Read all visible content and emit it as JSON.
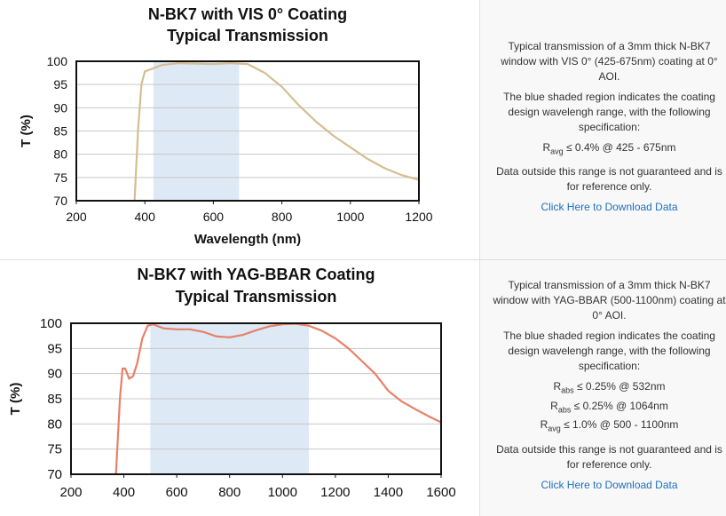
{
  "chart_data": [
    {
      "type": "line",
      "title": "N-BK7 with VIS 0° Coating",
      "subtitle": "Typical Transmission",
      "x_label": "Wavelength (nm)",
      "y_label": "T (%)",
      "x": [
        370,
        380,
        390,
        400,
        425,
        450,
        500,
        550,
        600,
        650,
        700,
        750,
        800,
        850,
        900,
        950,
        1000,
        1050,
        1100,
        1150,
        1200
      ],
      "values": [
        70,
        85,
        95,
        97.8,
        98.5,
        99.2,
        99.6,
        99.5,
        99.4,
        99.6,
        99.4,
        97.5,
        94.5,
        90.5,
        87,
        84,
        81.5,
        79,
        77,
        75.5,
        74.5
      ],
      "color": "#d6bd92",
      "shaded_range": [
        425,
        675
      ],
      "shade_color": "#dde9f5",
      "xlim": [
        200,
        1200
      ],
      "xticks": [
        200,
        400,
        600,
        800,
        1000,
        1200
      ],
      "ylim": [
        70,
        100
      ],
      "yticks": [
        70,
        75,
        80,
        85,
        90,
        95,
        100
      ],
      "grid": true
    },
    {
      "type": "line",
      "title": "N-BK7 with YAG-BBAR Coating",
      "subtitle": "Typical Transmission",
      "y_label": "T (%)",
      "x": [
        370,
        385,
        395,
        405,
        420,
        435,
        450,
        470,
        490,
        510,
        550,
        600,
        650,
        700,
        750,
        800,
        850,
        900,
        950,
        1000,
        1050,
        1100,
        1150,
        1200,
        1250,
        1300,
        1350,
        1400,
        1450,
        1500,
        1550,
        1600
      ],
      "values": [
        70,
        85,
        91,
        91,
        89,
        89.5,
        92,
        97,
        99.5,
        99.8,
        99,
        98.8,
        98.8,
        98.3,
        97.4,
        97.2,
        97.7,
        98.6,
        99.4,
        99.8,
        99.9,
        99.5,
        98.5,
        97,
        95,
        92.5,
        90,
        86.6,
        84.5,
        83,
        81.6,
        80.3
      ],
      "color": "#e8806a",
      "shaded_range": [
        500,
        1100
      ],
      "shade_color": "#dde9f5",
      "xlim": [
        200,
        1600
      ],
      "xticks": [
        200,
        400,
        600,
        800,
        1000,
        1200,
        1400,
        1600
      ],
      "ylim": [
        70,
        100
      ],
      "yticks": [
        70,
        75,
        80,
        85,
        90,
        95,
        100
      ],
      "grid": true
    }
  ],
  "notes": [
    {
      "description": "Typical transmission of a 3mm thick N-BK7 window with VIS 0° (425-675nm) coating at 0° AOI.",
      "shading_note": "The blue shaded region indicates the coating design wavelengh range, with the following specification:",
      "specs": [
        {
          "symbol": "R",
          "sub": "avg",
          "text": "≤ 0.4% @ 425 - 675nm"
        }
      ],
      "disclaimer": "Data outside this range is not guaranteed and is for reference only.",
      "link": "Click Here to Download Data"
    },
    {
      "description": "Typical transmission of a 3mm thick N-BK7 window with YAG-BBAR (500-1100nm) coating at 0° AOI.",
      "shading_note": "The blue shaded region indicates the coating design wavelengh range, with the following specification:",
      "specs": [
        {
          "symbol": "R",
          "sub": "abs",
          "text": "≤ 0.25% @ 532nm"
        },
        {
          "symbol": "R",
          "sub": "abs",
          "text": "≤ 0.25% @ 1064nm"
        },
        {
          "symbol": "R",
          "sub": "avg",
          "text": "≤ 1.0% @ 500 - 1100nm"
        }
      ],
      "disclaimer": "Data outside this range is not guaranteed and is for reference only.",
      "link": "Click Here to Download Data"
    }
  ]
}
